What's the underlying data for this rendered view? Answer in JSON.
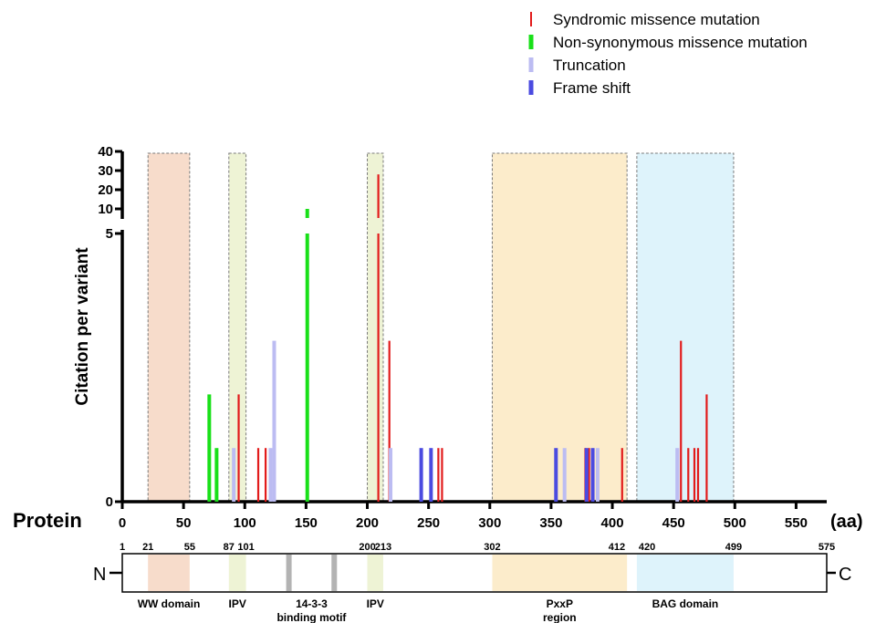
{
  "chart_data": {
    "type": "bar",
    "ylabel": "Citation per variant",
    "xlabel": "Protein",
    "x_unit": "(aa)",
    "xlim": [
      0,
      575
    ],
    "x_ticks": [
      0,
      50,
      100,
      150,
      200,
      250,
      300,
      350,
      400,
      450,
      500,
      550
    ],
    "ylim_lower": [
      0,
      5
    ],
    "ylim_upper": [
      10,
      40
    ],
    "y_ticks_lower": [
      0,
      5
    ],
    "y_ticks_upper": [
      10,
      20,
      30,
      40
    ],
    "legend_position": "top-right",
    "series": [
      {
        "name": "Syndromic missence mutation",
        "color": "#e21b1b",
        "marker": "thin",
        "points": [
          {
            "x": 95,
            "y": 2
          },
          {
            "x": 111,
            "y": 1
          },
          {
            "x": 117,
            "y": 1
          },
          {
            "x": 209,
            "y": 28
          },
          {
            "x": 218,
            "y": 3
          },
          {
            "x": 258,
            "y": 1
          },
          {
            "x": 261,
            "y": 1
          },
          {
            "x": 378,
            "y": 1
          },
          {
            "x": 381,
            "y": 1
          },
          {
            "x": 408,
            "y": 1
          },
          {
            "x": 456,
            "y": 3
          },
          {
            "x": 462,
            "y": 1
          },
          {
            "x": 467,
            "y": 1
          },
          {
            "x": 470,
            "y": 1
          },
          {
            "x": 477,
            "y": 2
          }
        ]
      },
      {
        "name": "Non-synonymous missence mutation",
        "color": "#19e019",
        "marker": "thick",
        "points": [
          {
            "x": 71,
            "y": 2
          },
          {
            "x": 77,
            "y": 1
          },
          {
            "x": 151,
            "y": 10
          }
        ]
      },
      {
        "name": "Truncation",
        "color": "#bcbcf2",
        "marker": "thick",
        "points": [
          {
            "x": 91,
            "y": 1
          },
          {
            "x": 121,
            "y": 1
          },
          {
            "x": 124,
            "y": 3
          },
          {
            "x": 219,
            "y": 1
          },
          {
            "x": 361,
            "y": 1
          },
          {
            "x": 388,
            "y": 1
          },
          {
            "x": 453,
            "y": 1
          }
        ]
      },
      {
        "name": "Frame shift",
        "color": "#4b4be0",
        "marker": "thick",
        "points": [
          {
            "x": 244,
            "y": 1
          },
          {
            "x": 252,
            "y": 1
          },
          {
            "x": 354,
            "y": 1
          },
          {
            "x": 379,
            "y": 1
          },
          {
            "x": 384,
            "y": 1
          }
        ]
      }
    ],
    "domains": [
      {
        "label": "WW domain",
        "start": 21,
        "end": 55,
        "color": "#f7dccb"
      },
      {
        "label": "IPV",
        "start": 87,
        "end": 101,
        "color": "#eef3d5"
      },
      {
        "label": "IPV",
        "start": 200,
        "end": 213,
        "color": "#eef3d5"
      },
      {
        "label": "PxxP region",
        "start": 302,
        "end": 412,
        "color": "#fceccb"
      },
      {
        "label": "BAG domain",
        "start": 420,
        "end": 499,
        "color": "#def3fb"
      }
    ],
    "motif": {
      "label": "14-3-3 binding motif",
      "positions": [
        136,
        173
      ],
      "color": "#b3b3b3"
    },
    "protein_map": {
      "n_term": "N",
      "c_term": "C",
      "positions": [
        1,
        21,
        55,
        87,
        101,
        200,
        213,
        302,
        412,
        420,
        499,
        575
      ],
      "label_texts": [
        "1",
        "21",
        "55",
        "87",
        "101",
        "200",
        "213",
        "302",
        "412",
        "420",
        "499",
        "575"
      ],
      "domain_labels": [
        "WW domain",
        "IPV",
        "14-3-3",
        "binding motif",
        "IPV",
        "PxxP",
        "region",
        "BAG domain"
      ]
    }
  }
}
